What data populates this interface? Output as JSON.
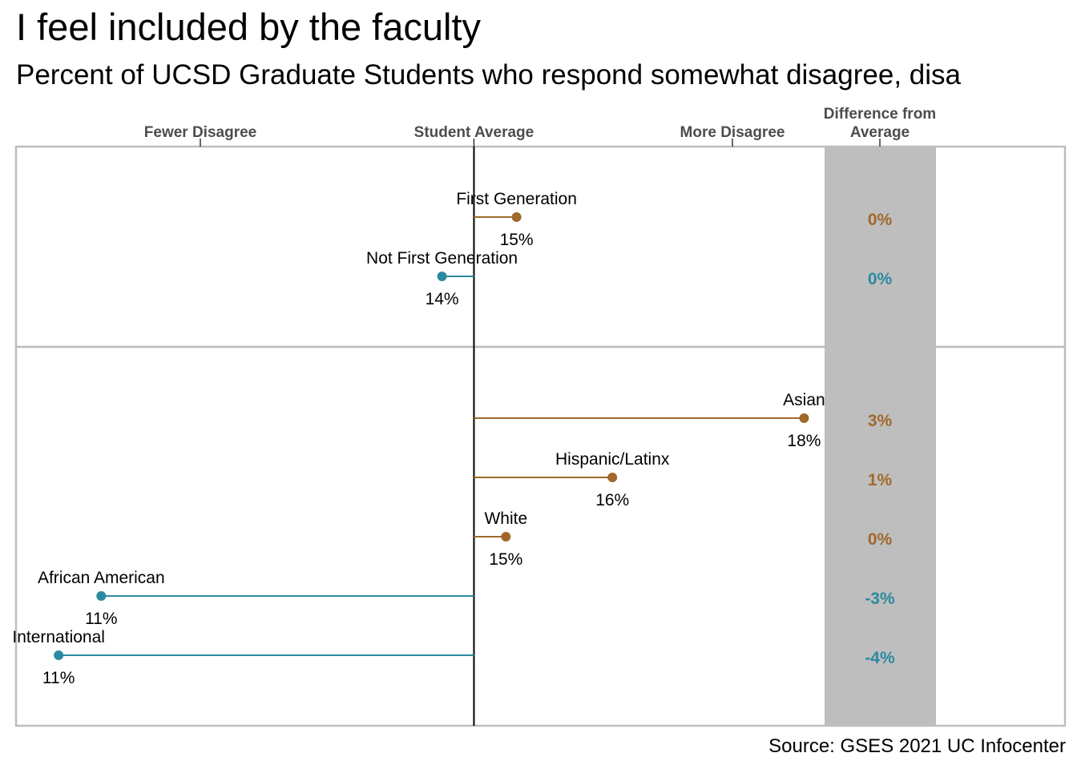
{
  "title": "I feel included by the faculty",
  "subtitle": "Percent of UCSD Graduate Students who respond somewhat disagree, disa",
  "source": "Source: GSES 2021 UC Infocenter",
  "colors": {
    "above": "#A0692B",
    "below": "#2A8AA0",
    "diff_band": "#BEBEBE",
    "panel_border": "#BEBEBE",
    "axis_text": "#4D4D4D"
  },
  "chart_data": {
    "type": "lollipop",
    "x_axis": {
      "reference_label": "Student Average",
      "left_label": "Fewer Disagree",
      "right_label": "More Disagree",
      "reference_value": 14.6,
      "domain": [
        10.3,
        17.9
      ]
    },
    "diff_column_header": [
      "Difference from",
      "Average"
    ],
    "panels": [
      {
        "items": [
          {
            "category": "First Generation",
            "value": 15.0,
            "value_label": "15%",
            "diff_label": "0%",
            "direction": "above"
          },
          {
            "category": "Not First Generation",
            "value": 14.3,
            "value_label": "14%",
            "diff_label": "0%",
            "direction": "below"
          }
        ]
      },
      {
        "items": [
          {
            "category": "Asian",
            "value": 17.7,
            "value_label": "18%",
            "diff_label": "3%",
            "direction": "above"
          },
          {
            "category": "Hispanic/Latinx",
            "value": 15.9,
            "value_label": "16%",
            "diff_label": "1%",
            "direction": "above"
          },
          {
            "category": "White",
            "value": 14.9,
            "value_label": "15%",
            "diff_label": "0%",
            "direction": "above"
          },
          {
            "category": "African American",
            "value": 11.1,
            "value_label": "11%",
            "diff_label": "-3%",
            "direction": "below"
          },
          {
            "category": "International",
            "value": 10.7,
            "value_label": "11%",
            "diff_label": "-4%",
            "direction": "below"
          }
        ]
      }
    ]
  }
}
